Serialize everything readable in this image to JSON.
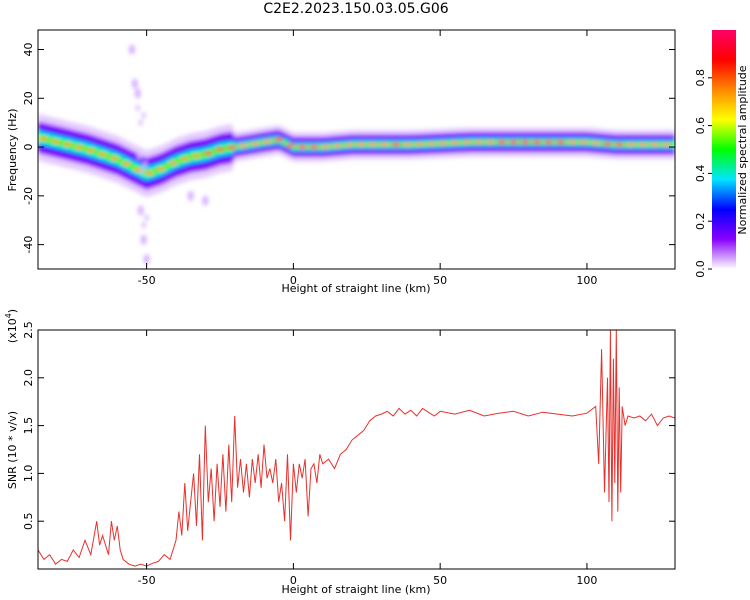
{
  "title": "C2E2.2023.150.03.05.G06",
  "chart_data": [
    {
      "type": "heatmap",
      "xlabel": "Height of straight line (km)",
      "ylabel": "Frequency (Hz)",
      "xlim": [
        -87,
        130
      ],
      "ylim": [
        -50,
        48
      ],
      "x_ticks": [
        -50,
        0,
        50,
        100
      ],
      "x_tick_labels": [
        "-50",
        "0",
        "50",
        "100"
      ],
      "y_ticks": [
        -40,
        -20,
        0,
        20,
        40
      ],
      "y_tick_labels": [
        "-40",
        "-20",
        "0",
        "20",
        "40"
      ],
      "colorbar": {
        "label": "Normalized spectral amplitude",
        "range": [
          0,
          1
        ],
        "ticks": [
          0.0,
          0.2,
          0.4,
          0.6,
          0.8
        ],
        "tick_labels": [
          "0.0",
          "0.2",
          "0.4",
          "0.6",
          "0.8"
        ],
        "colors": [
          "#ffffff",
          "#8800ff",
          "#0000ff",
          "#00e5ff",
          "#00ff00",
          "#ffff00",
          "#ff8800",
          "#ff0000",
          "#ff0066"
        ]
      },
      "ridge": {
        "x": [
          -87,
          -80,
          -70,
          -60,
          -55,
          -50,
          -45,
          -40,
          -35,
          -30,
          -25,
          -20,
          -15,
          -10,
          -5,
          0,
          5,
          10,
          20,
          40,
          60,
          80,
          100,
          110,
          120,
          130
        ],
        "y": [
          4,
          2,
          -1,
          -5,
          -8,
          -11,
          -9,
          -6,
          -4,
          -3,
          -1,
          0,
          1,
          2,
          3,
          0,
          0,
          0,
          1,
          1,
          2,
          2,
          2,
          1,
          1,
          1
        ]
      },
      "scatter_features": {
        "x": [
          -55,
          -54,
          -53,
          -52,
          -51,
          -50,
          -35,
          -30
        ],
        "y": [
          40,
          26,
          22,
          -26,
          -38,
          -46,
          -20,
          -22
        ]
      }
    },
    {
      "type": "line",
      "xlabel": "Height of straight line (km)",
      "ylabel": "SNR (10 * v/v)",
      "multiplier": "(x10",
      "multiplier_exp": "4",
      "xlim": [
        -87,
        130
      ],
      "ylim": [
        0,
        2.5
      ],
      "x_ticks": [
        -50,
        0,
        50,
        100
      ],
      "x_tick_labels": [
        "-50",
        "0",
        "50",
        "100"
      ],
      "y_ticks": [
        0.5,
        1.0,
        1.5,
        2.0,
        2.5
      ],
      "y_tick_labels": [
        "0.5",
        "1.0",
        "1.5",
        "2.0",
        "2.5"
      ],
      "color": "#e8302c",
      "series": [
        {
          "x": [
            -87,
            -85,
            -83,
            -81,
            -79,
            -77,
            -75,
            -73,
            -71,
            -69,
            -67,
            -66,
            -65,
            -63,
            -62,
            -61,
            -60,
            -59,
            -58,
            -56,
            -54,
            -52,
            -50,
            -48,
            -46,
            -44,
            -42,
            -40,
            -39,
            -38,
            -37,
            -36,
            -35,
            -34,
            -33,
            -32,
            -31,
            -30,
            -29,
            -28,
            -27,
            -26,
            -25,
            -24,
            -23,
            -22,
            -21,
            -20,
            -19,
            -18,
            -17,
            -16,
            -15,
            -14,
            -13,
            -12,
            -11,
            -10,
            -9,
            -8,
            -7,
            -6,
            -5,
            -4,
            -3,
            -2,
            -1,
            0,
            1,
            2,
            3,
            4,
            5,
            6,
            7,
            8,
            9,
            10,
            12,
            14,
            16,
            18,
            20,
            22,
            24,
            26,
            28,
            30,
            32,
            34,
            36,
            38,
            40,
            42,
            44,
            46,
            48,
            50,
            55,
            60,
            65,
            70,
            75,
            80,
            85,
            90,
            95,
            100,
            103,
            104,
            105,
            106,
            107,
            107.5,
            108,
            108.5,
            109,
            109.5,
            110,
            110.5,
            111,
            111.5,
            112,
            113,
            114,
            116,
            118,
            120,
            122,
            124,
            126,
            128,
            130
          ],
          "values": [
            0.2,
            0.1,
            0.15,
            0.05,
            0.1,
            0.08,
            0.2,
            0.12,
            0.3,
            0.15,
            0.5,
            0.25,
            0.35,
            0.15,
            0.5,
            0.3,
            0.45,
            0.2,
            0.1,
            0.05,
            0.03,
            0.05,
            0.03,
            0.06,
            0.08,
            0.15,
            0.1,
            0.3,
            0.6,
            0.35,
            0.9,
            0.4,
            0.7,
            1.0,
            0.45,
            1.2,
            0.3,
            1.5,
            0.7,
            1.05,
            0.5,
            1.1,
            0.65,
            1.2,
            0.6,
            1.3,
            0.7,
            1.6,
            0.85,
            1.15,
            0.8,
            1.1,
            0.75,
            1.15,
            0.9,
            1.2,
            0.85,
            1.3,
            0.95,
            1.05,
            0.9,
            1.15,
            0.7,
            0.9,
            0.5,
            1.2,
            0.3,
            1.1,
            0.8,
            1.1,
            0.95,
            1.15,
            0.55,
            1.05,
            1.1,
            0.9,
            1.2,
            1.1,
            1.15,
            1.05,
            1.2,
            1.25,
            1.35,
            1.4,
            1.45,
            1.55,
            1.6,
            1.62,
            1.65,
            1.6,
            1.68,
            1.62,
            1.66,
            1.6,
            1.68,
            1.64,
            1.6,
            1.65,
            1.62,
            1.66,
            1.6,
            1.63,
            1.65,
            1.6,
            1.64,
            1.62,
            1.6,
            1.63,
            1.7,
            1.1,
            2.3,
            0.8,
            2.0,
            0.7,
            2.5,
            0.5,
            2.2,
            0.9,
            2.5,
            0.6,
            1.9,
            0.8,
            1.7,
            1.5,
            1.6,
            1.58,
            1.6,
            1.55,
            1.62,
            1.5,
            1.58,
            1.6,
            1.58
          ]
        }
      ]
    }
  ]
}
